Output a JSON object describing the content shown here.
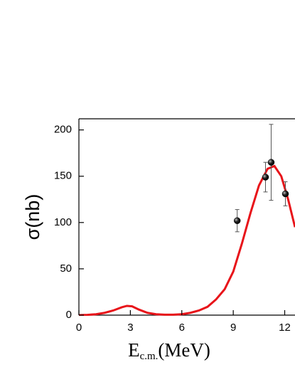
{
  "chart_data": {
    "type": "line",
    "xlabel": [
      "E",
      "c.m.",
      "(MeV)"
    ],
    "ylabel": "σ(nb)",
    "xlim": [
      0,
      12.6
    ],
    "ylim": [
      0,
      212
    ],
    "xticks": [
      0,
      3,
      6,
      9,
      12
    ],
    "yticks": [
      0,
      50,
      100,
      150,
      200
    ],
    "series": [
      {
        "type": "line",
        "color": "#e8141a",
        "x": [
          0,
          0.5,
          1,
          1.5,
          2,
          2.5,
          2.8,
          3.1,
          3.5,
          4,
          4.5,
          5,
          5.5,
          6,
          6.5,
          7,
          7.5,
          8,
          8.5,
          9,
          9.5,
          10,
          10.5,
          11,
          11.4,
          11.8,
          12.2,
          12.6
        ],
        "values": [
          0,
          0.3,
          1,
          2.5,
          5,
          8.5,
          10,
          9.5,
          6,
          2.5,
          1,
          0.5,
          0.5,
          1,
          2.5,
          5,
          9,
          17,
          28,
          47,
          77,
          110,
          140,
          158,
          161,
          150,
          125,
          95
        ]
      },
      {
        "type": "scatter",
        "color": "#000000",
        "x": [
          9.23,
          10.88,
          11.21,
          12.04
        ],
        "values": [
          102,
          149,
          165,
          131
        ],
        "errors": [
          12,
          16,
          41,
          13
        ]
      }
    ]
  }
}
